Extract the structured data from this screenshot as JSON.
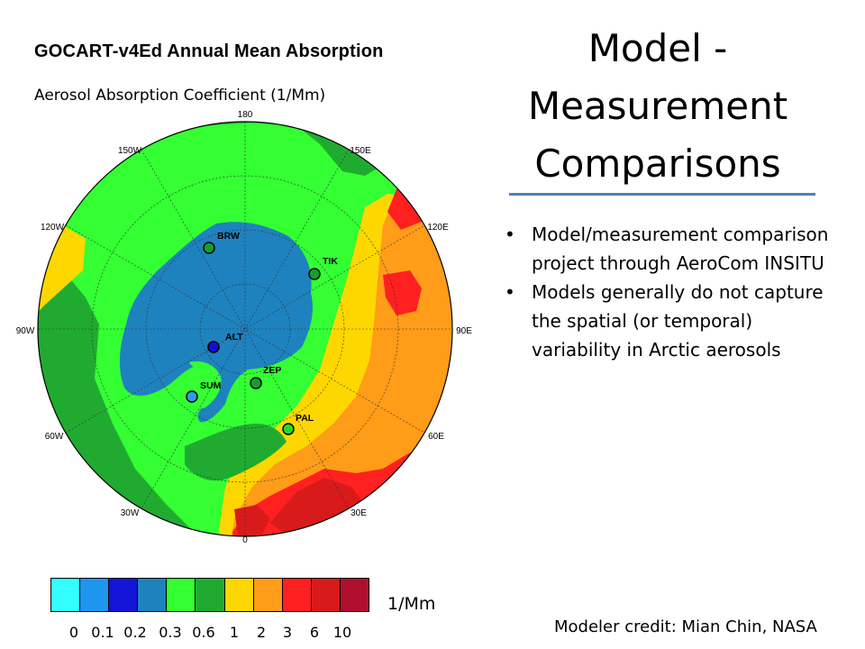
{
  "map": {
    "title": "GOCART-v4Ed Annual Mean Absorption",
    "subtitle": "Aerosol Absorption Coefficient (1/Mm)",
    "longitude_labels": {
      "lon_180": "180",
      "lon_150e": "150E",
      "lon_120e": "120E",
      "lon_90e": "90E",
      "lon_60e": "60E",
      "lon_30e": "30E",
      "lon_0": "0",
      "lon_30w": "30W",
      "lon_60w": "60W",
      "lon_90w": "90W",
      "lon_120w": "120W",
      "lon_150w": "150W"
    },
    "stations": [
      {
        "code": "BRW",
        "color": "#12a030"
      },
      {
        "code": "TIK",
        "color": "#12a030"
      },
      {
        "code": "ALT",
        "color": "#1010d8"
      },
      {
        "code": "ZEP",
        "color": "#12a030"
      },
      {
        "code": "SUM",
        "color": "#3399ee"
      },
      {
        "code": "PAL",
        "color": "#22dd22"
      }
    ]
  },
  "slide": {
    "title_line1": "Model -",
    "title_line2": "Measurement",
    "title_line3": "Comparisons",
    "bullets": [
      "Model/measurement comparison project through AeroCom INSITU",
      "Models generally do not capture the spatial (or temporal) variability in Arctic aerosols"
    ],
    "credit": "Modeler credit: Mian Chin, NASA"
  },
  "legend": {
    "units": "1/Mm",
    "colors": [
      "#33ffff",
      "#1e96f0",
      "#1414d8",
      "#1e82be",
      "#33ff33",
      "#20ab30",
      "#ffd700",
      "#ff9c18",
      "#ff2020",
      "#d81a1a",
      "#b0102e"
    ],
    "ticks": [
      "0",
      "0.1",
      "0.2",
      "0.3",
      "0.6",
      "1",
      "2",
      "3",
      "6",
      "10"
    ]
  }
}
